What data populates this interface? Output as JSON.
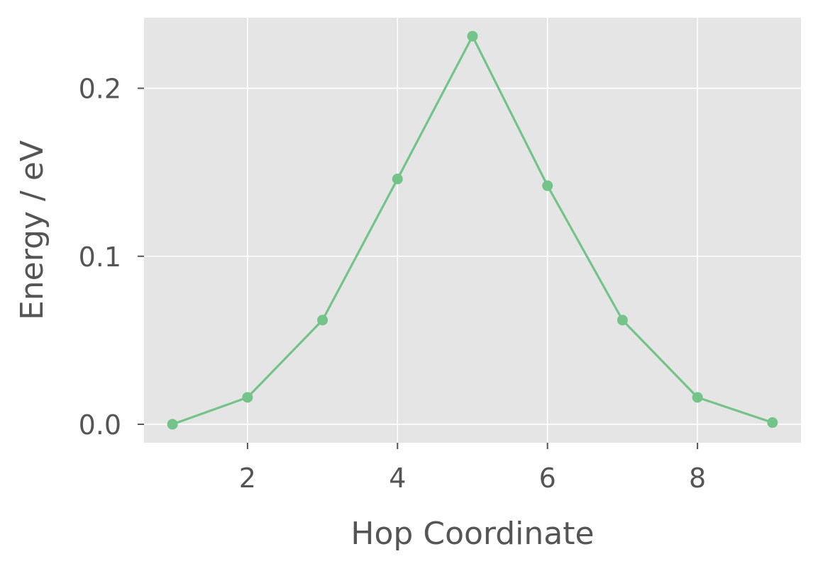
{
  "chart_data": {
    "type": "line",
    "title": "",
    "xlabel": "Hop Coordinate",
    "ylabel": "Energy / eV",
    "xlim": [
      0.62,
      9.38
    ],
    "ylim": [
      -0.011,
      0.242
    ],
    "xticks": [
      2,
      4,
      6,
      8
    ],
    "xtick_labels": [
      "2",
      "4",
      "6",
      "8"
    ],
    "yticks": [
      0.0,
      0.1,
      0.2
    ],
    "ytick_labels": [
      "0.0",
      "0.1",
      "0.2"
    ],
    "grid": true,
    "style": "ggplot",
    "colors": {
      "plot_background": "#e5e5e5",
      "grid": "#ffffff",
      "series": "#74c48a",
      "text": "#555555"
    },
    "series": [
      {
        "x": [
          1,
          2,
          3,
          4,
          5,
          6,
          7,
          8,
          9
        ],
        "y": [
          0.0,
          0.016,
          0.062,
          0.146,
          0.231,
          0.142,
          0.062,
          0.016,
          0.001
        ],
        "marker": "circle"
      }
    ]
  }
}
